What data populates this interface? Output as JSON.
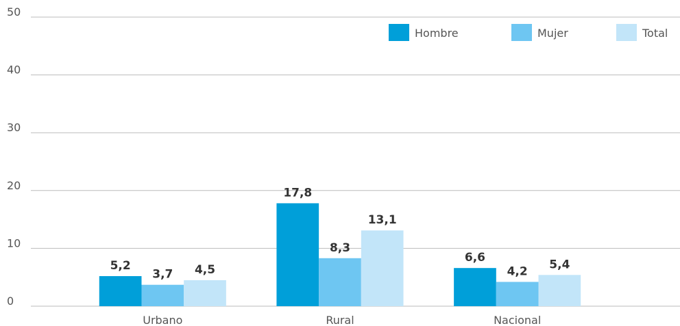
{
  "chart_data": {
    "type": "bar",
    "categories": [
      "Urbano",
      "Rural",
      "Nacional"
    ],
    "series": [
      {
        "name": "Hombre",
        "color": "#009fd9",
        "values": [
          5.2,
          17.8,
          6.6
        ],
        "value_labels": [
          "5,2",
          "17,8",
          "6,6"
        ]
      },
      {
        "name": "Mujer",
        "color": "#6ec6f2",
        "values": [
          3.7,
          8.3,
          4.2
        ],
        "value_labels": [
          "3,7",
          "8,3",
          "4,2"
        ]
      },
      {
        "name": "Total",
        "color": "#c2e5f9",
        "values": [
          4.5,
          13.1,
          5.4
        ],
        "value_labels": [
          "4,5",
          "13,1",
          "5,4"
        ]
      }
    ],
    "ylim": [
      0,
      50
    ],
    "yticks": [
      0,
      10,
      20,
      30,
      40,
      50
    ],
    "grid": true,
    "legend": "top-right"
  }
}
